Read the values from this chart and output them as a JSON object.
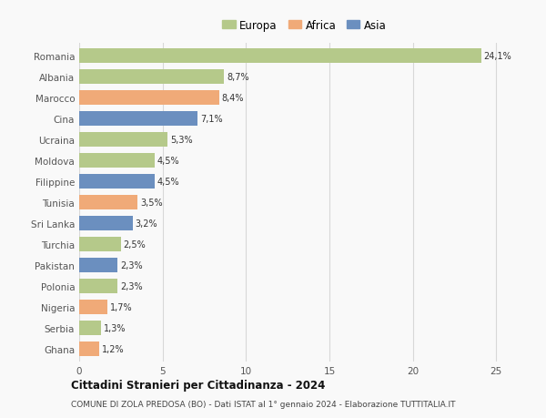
{
  "categories": [
    "Romania",
    "Albania",
    "Marocco",
    "Cina",
    "Ucraina",
    "Moldova",
    "Filippine",
    "Tunisia",
    "Sri Lanka",
    "Turchia",
    "Pakistan",
    "Polonia",
    "Nigeria",
    "Serbia",
    "Ghana"
  ],
  "values": [
    24.1,
    8.7,
    8.4,
    7.1,
    5.3,
    4.5,
    4.5,
    3.5,
    3.2,
    2.5,
    2.3,
    2.3,
    1.7,
    1.3,
    1.2
  ],
  "continents": [
    "Europa",
    "Europa",
    "Africa",
    "Asia",
    "Europa",
    "Europa",
    "Asia",
    "Africa",
    "Asia",
    "Europa",
    "Asia",
    "Europa",
    "Africa",
    "Europa",
    "Africa"
  ],
  "colors": {
    "Europa": "#b5c98a",
    "Africa": "#f0aa78",
    "Asia": "#6b8fbf"
  },
  "labels": [
    "24,1%",
    "8,7%",
    "8,4%",
    "7,1%",
    "5,3%",
    "4,5%",
    "4,5%",
    "3,5%",
    "3,2%",
    "2,5%",
    "2,3%",
    "2,3%",
    "1,7%",
    "1,3%",
    "1,2%"
  ],
  "title": "Cittadini Stranieri per Cittadinanza - 2024",
  "subtitle": "COMUNE DI ZOLA PREDOSA (BO) - Dati ISTAT al 1° gennaio 2024 - Elaborazione TUTTITALIA.IT",
  "xlim": [
    0,
    27
  ],
  "xticks": [
    0,
    5,
    10,
    15,
    20,
    25
  ],
  "background_color": "#f9f9f9",
  "grid_color": "#d8d8d8",
  "legend_entries": [
    "Europa",
    "Africa",
    "Asia"
  ],
  "legend_colors": [
    "#b5c98a",
    "#f0aa78",
    "#6b8fbf"
  ]
}
